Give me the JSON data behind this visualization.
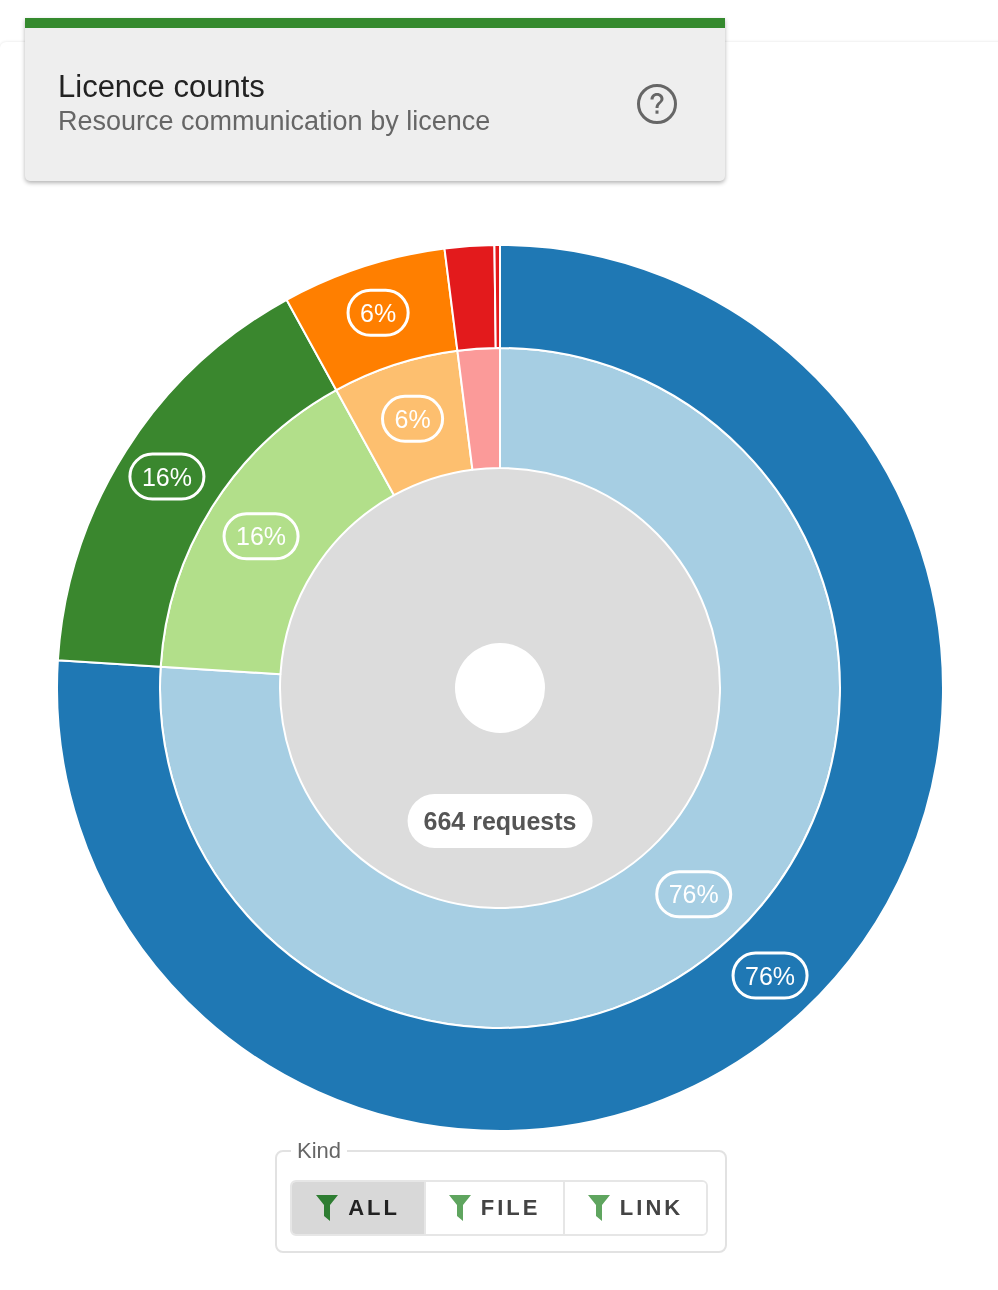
{
  "chart_data": {
    "type": "donut",
    "title": "Licence counts",
    "subtitle": "Resource communication by licence",
    "categories": [
      null,
      null,
      null,
      null,
      null
    ],
    "series": [
      {
        "values": [
          76,
          16,
          6,
          2,
          null
        ],
        "colors": [
          "#a6cee3",
          "#b2df8a",
          "#fdbf6f",
          "#fb9a99",
          null
        ],
        "value_labels": [
          "76%",
          "16%",
          "6%",
          null,
          null
        ]
      },
      {
        "values": [
          76,
          16,
          6,
          1.8,
          0.2
        ],
        "colors": [
          "#1f78b4",
          "#3a872e",
          "#ff7f00",
          "#e31a1c",
          "#e31a1c"
        ],
        "value_labels": [
          "76%",
          "16%",
          "6%",
          null,
          null
        ]
      }
    ],
    "annotations": [
      "664 requests",
      "Kind",
      "ALL",
      "FILE",
      "LINK"
    ]
  }
}
